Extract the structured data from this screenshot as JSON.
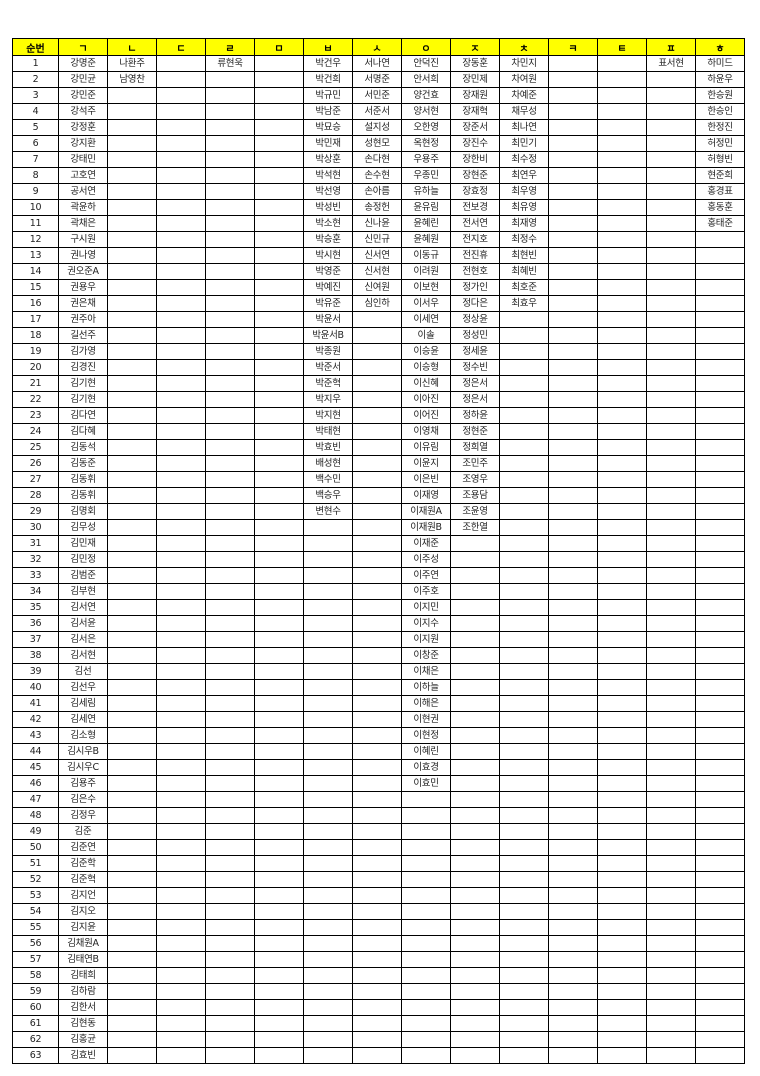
{
  "headers": [
    "순번",
    "ㄱ",
    "ㄴ",
    "ㄷ",
    "ㄹ",
    "ㅁ",
    "ㅂ",
    "ㅅ",
    "ㅇ",
    "ㅈ",
    "ㅊ",
    "ㅋ",
    "ㅌ",
    "ㅍ",
    "ㅎ"
  ],
  "row_count": 63,
  "header_color": "#ffff00",
  "columns": {
    "ㄱ": [
      "강명준",
      "강민균",
      "강민준",
      "강석주",
      "강정훈",
      "강지환",
      "강태민",
      "고호연",
      "공서연",
      "곽윤하",
      "곽채은",
      "구시원",
      "권나영",
      "권오준A",
      "권용우",
      "권은채",
      "권주아",
      "길선주",
      "김가영",
      "김경진",
      "김기현",
      "김기현",
      "김다연",
      "김다혜",
      "김동석",
      "김동준",
      "김동휘",
      "김동휘",
      "김명회",
      "김무성",
      "김민재",
      "김민정",
      "김범준",
      "김부현",
      "김서연",
      "김서윤",
      "김서은",
      "김서현",
      "김선",
      "김선우",
      "김세림",
      "김세연",
      "김소형",
      "김시우B",
      "김시우C",
      "김용주",
      "김은수",
      "김정우",
      "김준",
      "김준연",
      "김준학",
      "김준혁",
      "김지언",
      "김지오",
      "김지윤",
      "김채원A",
      "김태연B",
      "김태희",
      "김하람",
      "김한서",
      "김현동",
      "김홍균",
      "김효빈"
    ],
    "ㄴ": [
      "나환주",
      "남영찬"
    ],
    "ㄷ": [],
    "ㄹ": [
      "류현욱"
    ],
    "ㅁ": [],
    "ㅂ": [
      "박건우",
      "박건희",
      "박규민",
      "박남준",
      "박묘승",
      "박민재",
      "박상훈",
      "박석현",
      "박선영",
      "박성빈",
      "박소현",
      "박승훈",
      "박시현",
      "박영준",
      "박예진",
      "박유준",
      "박윤서",
      "박윤서B",
      "박종원",
      "박준서",
      "박준혁",
      "박지우",
      "박지현",
      "박태현",
      "박효빈",
      "배성현",
      "백수민",
      "백승우",
      "변현수"
    ],
    "ㅅ": [
      "서나연",
      "서명준",
      "서민준",
      "서준서",
      "설지성",
      "성현모",
      "손다현",
      "손수현",
      "손아름",
      "송정헌",
      "신나윤",
      "신민규",
      "신서연",
      "신서현",
      "신여원",
      "심인하"
    ],
    "ㅇ": [
      "안덕진",
      "안서희",
      "양건효",
      "양서현",
      "오한영",
      "옥현정",
      "우용주",
      "우종민",
      "유하늘",
      "윤유림",
      "윤혜린",
      "윤혜원",
      "이동규",
      "이려원",
      "이보현",
      "이서우",
      "이세연",
      "이솔",
      "이승윤",
      "이승형",
      "이신혜",
      "이아진",
      "이어진",
      "이영채",
      "이유림",
      "이윤지",
      "이은빈",
      "이재영",
      "이재원A",
      "이재원B",
      "이재준",
      "이주성",
      "이주연",
      "이주호",
      "이지민",
      "이지수",
      "이지원",
      "이창준",
      "이채은",
      "이하늘",
      "이해은",
      "이현권",
      "이현정",
      "이혜린",
      "이효경",
      "이효민"
    ],
    "ㅈ": [
      "장동훈",
      "장민제",
      "장재원",
      "장재혁",
      "장준서",
      "장진수",
      "장한비",
      "장현준",
      "장효정",
      "전보경",
      "전서연",
      "전지호",
      "전진휴",
      "전현호",
      "정가인",
      "정다은",
      "정상윤",
      "정성민",
      "정세윤",
      "정수빈",
      "정은서",
      "정은서",
      "정하윤",
      "정현준",
      "정희열",
      "조민주",
      "조영우",
      "조용담",
      "조윤영",
      "조한열"
    ],
    "ㅊ": [
      "차민지",
      "차여원",
      "차예준",
      "채무성",
      "최나연",
      "최민기",
      "최수정",
      "최연우",
      "최우영",
      "최유영",
      "최재영",
      "최정수",
      "최현빈",
      "최혜빈",
      "최호준",
      "최효우"
    ],
    "ㅋ": [],
    "ㅌ": [],
    "ㅍ": [
      "표서현"
    ],
    "ㅎ": [
      "하미드",
      "하윤우",
      "한승원",
      "한승인",
      "한정진",
      "허정민",
      "허형빈",
      "현준희",
      "홍경표",
      "홍동훈",
      "홍태준"
    ]
  }
}
